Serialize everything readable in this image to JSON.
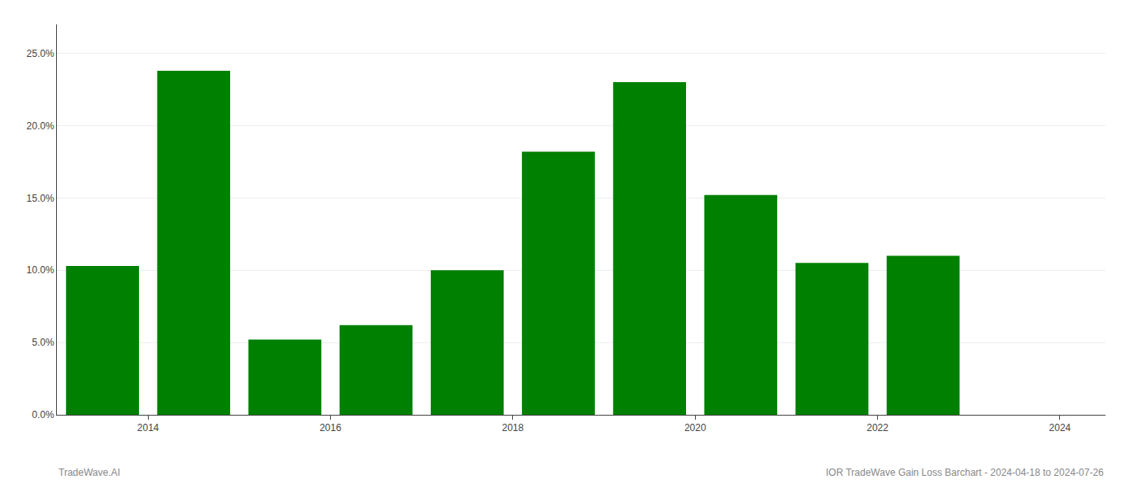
{
  "chart_data": {
    "type": "bar",
    "x": [
      2013.5,
      2014.5,
      2015.5,
      2016.5,
      2017.5,
      2018.5,
      2019.5,
      2020.5,
      2021.5,
      2022.5
    ],
    "values": [
      0.103,
      0.238,
      0.052,
      0.062,
      0.1,
      0.182,
      0.23,
      0.152,
      0.105,
      0.11
    ],
    "color": "#008000",
    "xlim": [
      2013.0,
      2024.5
    ],
    "xticks": [
      2014,
      2016,
      2018,
      2020,
      2022,
      2024
    ],
    "ylim": [
      0,
      0.27
    ],
    "yticks": [
      {
        "value": 0.0,
        "label": "0.0%"
      },
      {
        "value": 0.05,
        "label": "5.0%"
      },
      {
        "value": 0.1,
        "label": "10.0%"
      },
      {
        "value": 0.15,
        "label": "15.0%"
      },
      {
        "value": 0.2,
        "label": "20.0%"
      },
      {
        "value": 0.25,
        "label": "25.0%"
      }
    ],
    "grid": true,
    "annotations": [
      "TradeWave.AI",
      "IOR TradeWave Gain Loss Barchart - 2024-04-18 to 2024-07-26"
    ]
  }
}
